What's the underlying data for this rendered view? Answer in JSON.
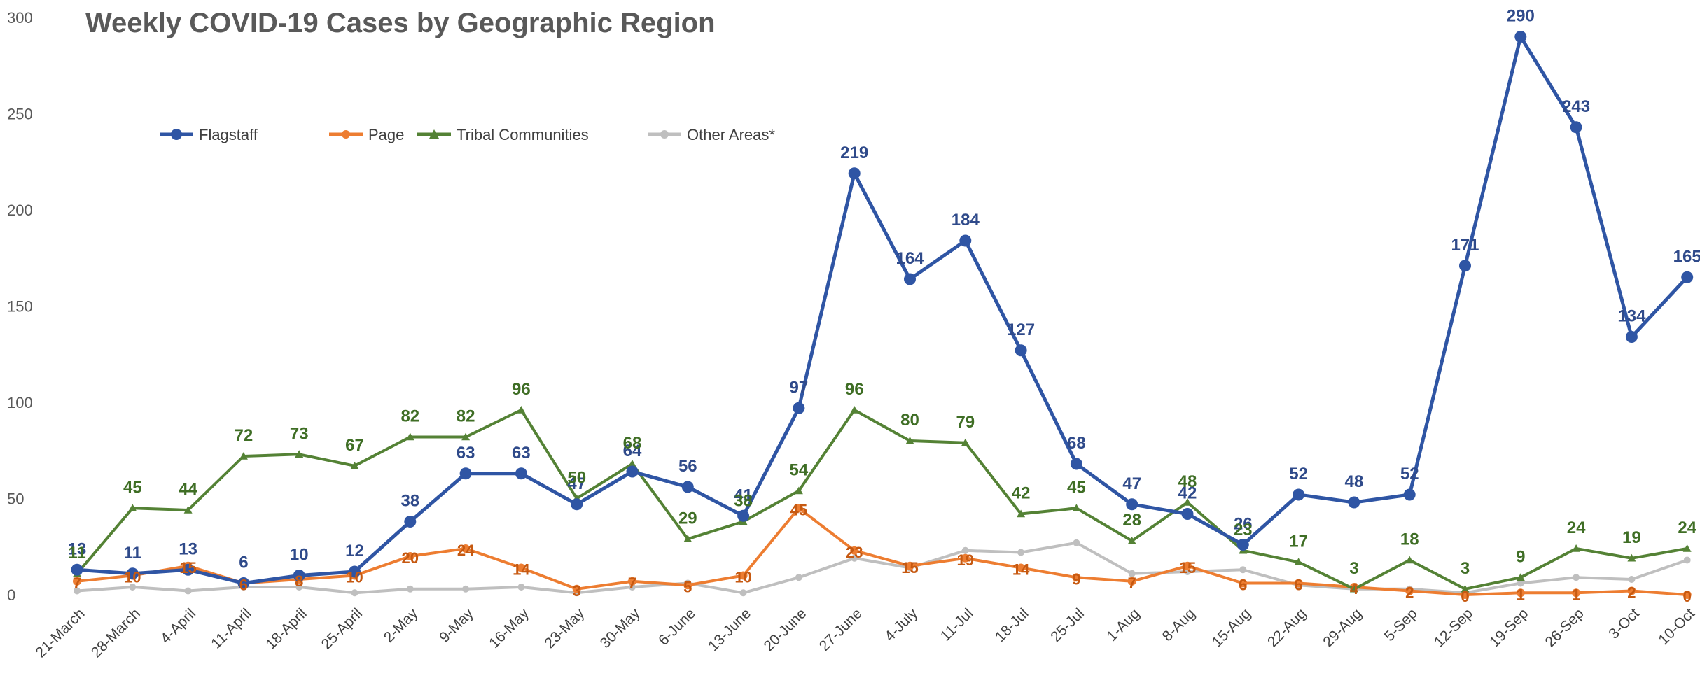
{
  "chart_data": {
    "type": "line",
    "title": "Weekly COVID-19 Cases by Geographic Region",
    "xlabel": "",
    "ylabel": "",
    "ylim": [
      0,
      300
    ],
    "yticks": [
      "0",
      "50",
      "100",
      "150",
      "200",
      "250",
      "300"
    ],
    "grid": false,
    "legend": "top-left",
    "categories": [
      "21-March",
      "28-March",
      "4-April",
      "11-April",
      "18-April",
      "25-April",
      "2-May",
      "9-May",
      "16-May",
      "23-May",
      "30-May",
      "6-June",
      "13-June",
      "20-June",
      "27-June",
      "4-July",
      "11-Jul",
      "18-Jul",
      "25-Jul",
      "1-Aug",
      "8-Aug",
      "15-Aug",
      "22-Aug",
      "29-Aug",
      "5-Sep",
      "12-Sep",
      "19-Sep",
      "26-Sep",
      "3-Oct",
      "10-Oct"
    ],
    "series": [
      {
        "name": "Flagstaff",
        "color": "#2f55a4",
        "values": [
          13,
          11,
          13,
          6,
          10,
          12,
          38,
          63,
          63,
          47,
          64,
          56,
          41,
          97,
          219,
          164,
          184,
          127,
          68,
          47,
          42,
          26,
          52,
          48,
          52,
          171,
          290,
          243,
          134,
          165
        ]
      },
      {
        "name": "Page",
        "color": "#ed7d31",
        "values": [
          7,
          10,
          15,
          6,
          8,
          10,
          20,
          24,
          14,
          3,
          7,
          5,
          10,
          45,
          23,
          15,
          19,
          14,
          9,
          7,
          15,
          6,
          6,
          4,
          2,
          0,
          1,
          1,
          2,
          0
        ]
      },
      {
        "name": "Tribal Communities",
        "color": "#548235",
        "values": [
          11,
          45,
          44,
          72,
          73,
          67,
          82,
          82,
          96,
          50,
          68,
          29,
          38,
          54,
          96,
          80,
          79,
          42,
          45,
          28,
          48,
          23,
          17,
          3,
          18,
          3,
          9,
          24,
          19,
          24
        ]
      },
      {
        "name": "Other Areas*",
        "color": "#bfbfbf",
        "values": [
          2,
          4,
          2,
          4,
          4,
          1,
          3,
          3,
          4,
          1,
          4,
          6,
          1,
          9,
          19,
          14,
          23,
          22,
          27,
          11,
          12,
          13,
          5,
          3,
          3,
          1,
          6,
          9,
          8,
          18
        ]
      }
    ]
  },
  "data_labels": {
    "Flagstaff": [
      "13",
      "11",
      "13",
      "6",
      "10",
      "12",
      "38",
      "63",
      "63",
      "47",
      "64",
      "56",
      "41",
      "97",
      "219",
      "164",
      "184",
      "127",
      "68",
      "47",
      "42",
      "26",
      "52",
      "48",
      "52",
      "171",
      "290",
      "243",
      "134",
      "165"
    ],
    "Page": [
      "7",
      "10",
      "15",
      "6",
      "8",
      "10",
      "20",
      "24",
      "14",
      "3",
      "7",
      "5",
      "10",
      "45",
      "23",
      "15",
      "19",
      "14",
      "9",
      "7",
      "15",
      "6",
      "6",
      "4",
      "2",
      "0",
      "1",
      "1",
      "2",
      "0"
    ],
    "Tribal Communities": [
      "11",
      "45",
      "44",
      "72",
      "73",
      "67",
      "82",
      "82",
      "96",
      "50",
      "68",
      "29",
      "38",
      "54",
      "96",
      "80",
      "79",
      "42",
      "45",
      "28",
      "48",
      "23",
      "17",
      "3",
      "18",
      "3",
      "9",
      "24",
      "19",
      "24"
    ]
  }
}
